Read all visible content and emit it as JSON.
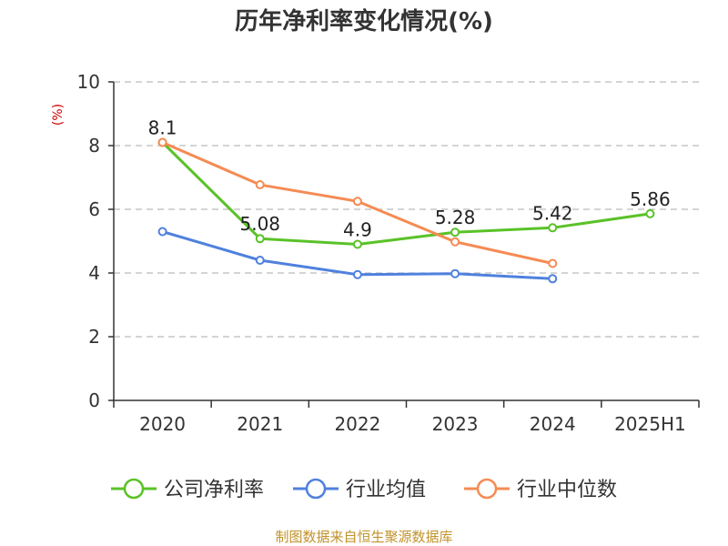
{
  "chart_data": {
    "type": "line",
    "title": "历年净利率变化情况(%)",
    "unit_label": "(%)",
    "categories": [
      "2020",
      "2021",
      "2022",
      "2023",
      "2024",
      "2025H1"
    ],
    "ylim": [
      0,
      10
    ],
    "yticks": [
      0,
      2,
      4,
      6,
      8,
      10
    ],
    "grid": true,
    "legend_position": "bottom",
    "series": [
      {
        "name": "公司净利率",
        "color": "#5ac228",
        "values": [
          8.1,
          5.08,
          4.9,
          5.28,
          5.42,
          5.86
        ],
        "labels": [
          "8.1",
          "5.08",
          "4.9",
          "5.28",
          "5.42",
          "5.86"
        ]
      },
      {
        "name": "行业均值",
        "color": "#4f81dd",
        "values": [
          5.3,
          4.4,
          3.95,
          3.98,
          3.82,
          null
        ]
      },
      {
        "name": "行业中位数",
        "color": "#f58b53",
        "values": [
          8.1,
          6.77,
          6.25,
          4.98,
          4.3,
          null
        ]
      }
    ]
  },
  "source": "制图数据来自恒生聚源数据库"
}
